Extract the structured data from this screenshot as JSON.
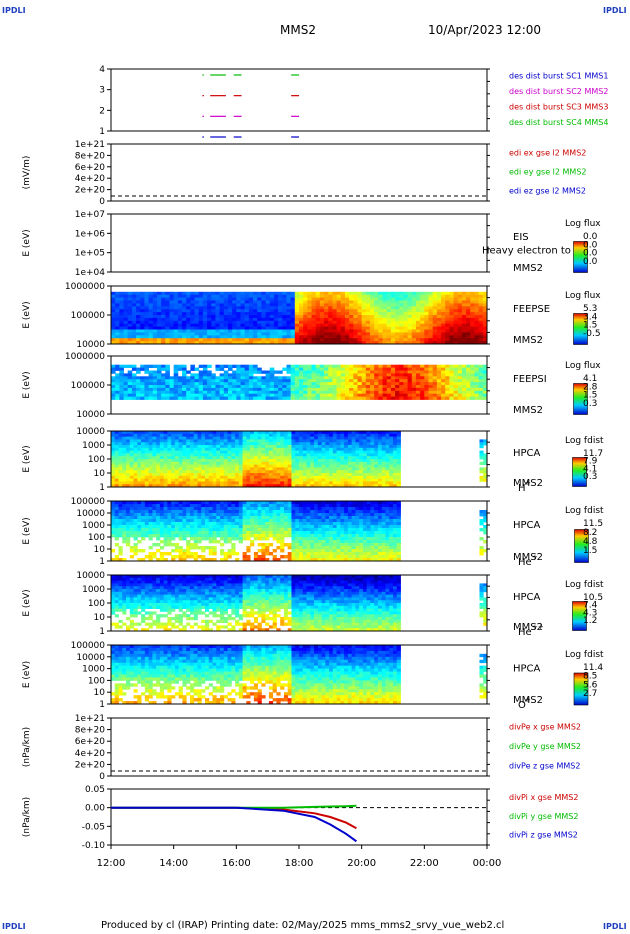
{
  "header": {
    "corner_text": "IPDLI",
    "spacecraft": "MMS2",
    "datetime": "10/Apr/2023 12:00"
  },
  "footer": {
    "text": "Produced by cl (IRAP)   Printing date: 02/May/2025   mms_mms2_srvy_vue_web2.cl"
  },
  "time_axis": {
    "ticks": [
      "12:00",
      "14:00",
      "16:00",
      "18:00",
      "20:00",
      "22:00",
      "00:00"
    ]
  },
  "panels": [
    {
      "id": "burst",
      "ylabel": "",
      "ticks": [
        "4",
        "3",
        "2",
        "1"
      ],
      "legend": [
        {
          "text": "des dist burst SC1 MMS1",
          "color": "#0000cc"
        },
        {
          "text": "des dist burst SC2 MMS2",
          "color": "#cc00cc"
        },
        {
          "text": "des dist burst SC3 MMS3",
          "color": "#cc0000"
        },
        {
          "text": "des dist burst SC4 MMS4",
          "color": "#00bb00"
        }
      ]
    },
    {
      "id": "edi",
      "ylabel": "(mV/m)",
      "ticks": [
        "1e+21",
        "8e+20",
        "6e+20",
        "4e+20",
        "2e+20",
        "0"
      ],
      "legend": [
        {
          "text": "edi ex gse l2 MMS2",
          "color": "#cc0000"
        },
        {
          "text": "edi ey gse l2 MMS2",
          "color": "#00bb00"
        },
        {
          "text": "edi ez gse l2 MMS2",
          "color": "#0000cc"
        }
      ]
    },
    {
      "id": "eis",
      "ylabel": "E (eV)",
      "ticks": [
        "1e+07",
        "1e+06",
        "1e+05",
        "1e+04"
      ],
      "right": [
        "EIS",
        "MMS2"
      ],
      "overlay": "Heavy electron to",
      "cb_title": "Log flux",
      "cb_vals": [
        "0.0",
        "0.0",
        "0.0",
        "0.0"
      ]
    },
    {
      "id": "feepse",
      "ylabel": "E (eV)",
      "ticks": [
        "1000000",
        "100000",
        "10000"
      ],
      "right": [
        "FEEPSE",
        "MMS2"
      ],
      "cb_title": "Log flux",
      "cb_vals": [
        "5.3",
        "3.4",
        "1.5",
        "-0.5"
      ]
    },
    {
      "id": "feepsi",
      "ylabel": "E (eV)",
      "ticks": [
        "1000000",
        "100000",
        "10000"
      ],
      "right": [
        "FEEPSI",
        "MMS2"
      ],
      "cb_title": "Log flux",
      "cb_vals": [
        "4.1",
        "2.8",
        "1.5",
        "0.3"
      ]
    },
    {
      "id": "hpca_h",
      "ylabel": "E (eV)",
      "ticks": [
        "10000",
        "1000",
        "100",
        "10",
        "1"
      ],
      "right": [
        "HPCA",
        "MMS2"
      ],
      "species": "H",
      "species_sup": "+",
      "cb_title": "Log fdist",
      "cb_vals": [
        "11.7",
        "7.9",
        "4.1",
        "0.3"
      ]
    },
    {
      "id": "hpca_he",
      "ylabel": "E (eV)",
      "ticks": [
        "100000",
        "10000",
        "1000",
        "100",
        "10",
        "1"
      ],
      "right": [
        "HPCA",
        "MMS2"
      ],
      "species": "He",
      "species_sup": "+",
      "cb_title": "Log fdist",
      "cb_vals": [
        "11.5",
        "8.2",
        "4.8",
        "1.5"
      ]
    },
    {
      "id": "hpca_hepp",
      "ylabel": "E (eV)",
      "ticks": [
        "10000",
        "1000",
        "100",
        "10",
        "1"
      ],
      "right": [
        "HPCA",
        "MMS2"
      ],
      "species": "He",
      "species_sup": "++",
      "cb_title": "Log fdist",
      "cb_vals": [
        "10.5",
        "7.4",
        "4.3",
        "1.2"
      ]
    },
    {
      "id": "hpca_o",
      "ylabel": "E (eV)",
      "ticks": [
        "100000",
        "10000",
        "1000",
        "100",
        "10",
        "1"
      ],
      "right": [
        "HPCA",
        "MMS2"
      ],
      "species": "O",
      "species_sup": "+",
      "cb_title": "Log fdist",
      "cb_vals": [
        "11.4",
        "8.5",
        "5.6",
        "2.7"
      ]
    },
    {
      "id": "divpe",
      "ylabel": "(nPa/km)",
      "ticks": [
        "1e+21",
        "8e+20",
        "6e+20",
        "4e+20",
        "2e+20",
        "0"
      ],
      "legend": [
        {
          "text": "divPe x gse MMS2",
          "color": "#cc0000"
        },
        {
          "text": "divPe y gse MMS2",
          "color": "#00bb00"
        },
        {
          "text": "divPe z gse MMS2",
          "color": "#0000cc"
        }
      ]
    },
    {
      "id": "divpi",
      "ylabel": "(nPa/km)",
      "ticks": [
        "0.05",
        "0.00",
        "-0.05",
        "-0.10"
      ],
      "legend": [
        {
          "text": "divPi x gse MMS2",
          "color": "#cc0000"
        },
        {
          "text": "divPi y gse MMS2",
          "color": "#00bb00"
        },
        {
          "text": "divPi z gse MMS2",
          "color": "#0000cc"
        }
      ]
    }
  ],
  "chart_data": {
    "type": "line",
    "title": "MMS2   10/Apr/2023 12:00",
    "xlabel": "",
    "x_ticks": [
      "12:00",
      "14:00",
      "16:00",
      "18:00",
      "20:00",
      "22:00",
      "00:00"
    ],
    "burst_intervals": [
      {
        "name": "des dist burst SC1 MMS1",
        "sc": 1,
        "color": "#0000cc",
        "intervals": [
          [
            "14:55",
            "14:56"
          ],
          [
            "15:10",
            "15:40"
          ],
          [
            "15:55",
            "16:10"
          ],
          [
            "17:45",
            "18:00"
          ]
        ]
      },
      {
        "name": "des dist burst SC2 MMS2",
        "sc": 2,
        "color": "#cc00cc",
        "intervals": [
          [
            "14:55",
            "14:56"
          ],
          [
            "15:10",
            "15:40"
          ],
          [
            "15:55",
            "16:10"
          ],
          [
            "17:45",
            "18:00"
          ]
        ]
      },
      {
        "name": "des dist burst SC3 MMS3",
        "sc": 3,
        "color": "#cc0000",
        "intervals": [
          [
            "14:55",
            "14:56"
          ],
          [
            "15:10",
            "15:40"
          ],
          [
            "15:55",
            "16:10"
          ],
          [
            "17:45",
            "18:00"
          ]
        ]
      },
      {
        "name": "des dist burst SC4 MMS4",
        "sc": 4,
        "color": "#00bb00",
        "intervals": [
          [
            "14:55",
            "14:56"
          ],
          [
            "15:10",
            "15:40"
          ],
          [
            "15:55",
            "16:10"
          ],
          [
            "17:45",
            "18:00"
          ]
        ]
      }
    ],
    "divpi": {
      "ylabel": "(nPa/km)",
      "ylim": [
        -0.1,
        0.05
      ],
      "series": [
        {
          "name": "divPi x gse MMS2",
          "color": "#cc0000",
          "t": [
            "12:00",
            "14:00",
            "16:00",
            "17:30",
            "18:30",
            "19:00",
            "19:30",
            "19:50"
          ],
          "values": [
            0.0,
            0.0,
            0.0,
            -0.005,
            -0.015,
            -0.025,
            -0.04,
            -0.055
          ]
        },
        {
          "name": "divPi y gse MMS2",
          "color": "#00bb00",
          "t": [
            "12:00",
            "14:00",
            "16:00",
            "17:30",
            "18:30",
            "19:00",
            "19:30",
            "19:50"
          ],
          "values": [
            0.0,
            0.0,
            0.0,
            0.0,
            0.002,
            0.003,
            0.004,
            0.005
          ]
        },
        {
          "name": "divPi z gse MMS2",
          "color": "#0000cc",
          "t": [
            "12:00",
            "14:00",
            "16:00",
            "17:30",
            "18:30",
            "19:00",
            "19:30",
            "19:50"
          ],
          "values": [
            0.0,
            0.0,
            0.0,
            -0.008,
            -0.025,
            -0.045,
            -0.07,
            -0.09
          ]
        }
      ]
    }
  }
}
